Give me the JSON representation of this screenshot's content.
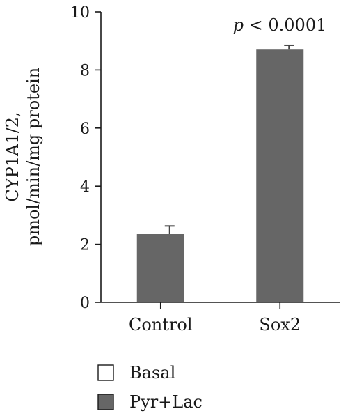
{
  "chart_data": {
    "type": "bar",
    "categories": [
      "Control",
      "Sox2"
    ],
    "series": [
      {
        "name": "Basal",
        "values": [
          null,
          null
        ],
        "errors": [
          null,
          null
        ]
      },
      {
        "name": "Pyr+Lac",
        "values": [
          2.35,
          8.7
        ],
        "errors": [
          0.28,
          0.15
        ]
      }
    ],
    "ylabel_line1": "CYP1A1/2,",
    "ylabel_line2": "pmol/min/mg protein",
    "ylim": [
      0,
      10
    ],
    "yticks": [
      "0",
      "2",
      "4",
      "6",
      "8",
      "10"
    ],
    "annotation": {
      "italic": "p",
      "rest": " < 0.0001",
      "category": "Sox2"
    },
    "legend": {
      "placement": "bottom-left",
      "items": [
        {
          "label": "Basal",
          "color": "#ffffff"
        },
        {
          "label": "Pyr+Lac",
          "color": "#666666"
        }
      ]
    },
    "grid": false
  }
}
